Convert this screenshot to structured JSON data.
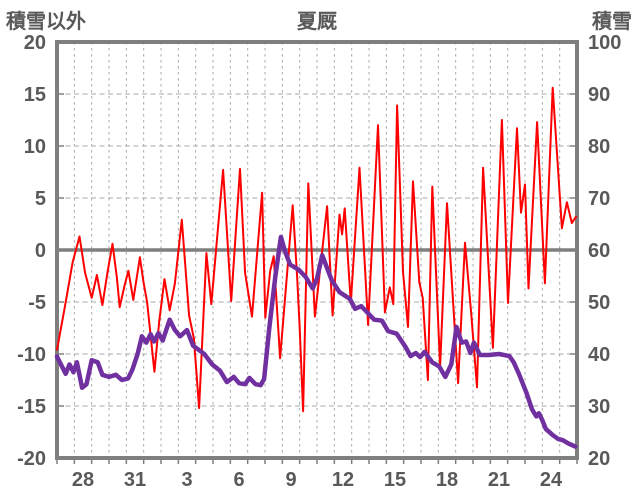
{
  "window": {
    "background": "#ffffff"
  },
  "chart_data": {
    "type": "line",
    "title": "夏厩",
    "left_axis": {
      "title": "積雪以外",
      "min": -20,
      "max": 20,
      "tick_step": 5,
      "ticks": [
        "20",
        "15",
        "10",
        "5",
        "0",
        "-5",
        "-10",
        "-15",
        "-20"
      ]
    },
    "right_axis": {
      "title": "積雪",
      "min": 20,
      "max": 100,
      "tick_step": 10,
      "ticks": [
        "100",
        "90",
        "80",
        "70",
        "60",
        "50",
        "40",
        "30",
        "20"
      ]
    },
    "x_axis": {
      "tick_labels": [
        "28",
        "31",
        "3",
        "6",
        "9",
        "12",
        "15",
        "18",
        "21",
        "24"
      ],
      "days_shown": 30,
      "label_day_centers": [
        1.5,
        4.5,
        7.5,
        10.5,
        13.5,
        16.5,
        19.5,
        22.5,
        25.5,
        28.5
      ],
      "gridline_every_days": 1
    },
    "style": {
      "grid_color": "#A8A8A8",
      "border_color": "#7F7F7F",
      "zero_line_color": "#7F7F7F",
      "text_color": "#595959",
      "legend": "none",
      "grid": "dashed"
    },
    "series": [
      {
        "name": "red",
        "axis": "left",
        "color": "#FF0000",
        "width": 2,
        "points": [
          [
            0.0,
            -9.6
          ],
          [
            0.45,
            -5.5
          ],
          [
            0.9,
            -1.2
          ],
          [
            1.3,
            1.3
          ],
          [
            1.62,
            -2.2
          ],
          [
            2.0,
            -4.6
          ],
          [
            2.3,
            -2.4
          ],
          [
            2.62,
            -5.3
          ],
          [
            2.92,
            -2.1
          ],
          [
            3.2,
            0.6
          ],
          [
            3.45,
            -2.6
          ],
          [
            3.62,
            -5.5
          ],
          [
            3.9,
            -3.4
          ],
          [
            4.12,
            -2.0
          ],
          [
            4.4,
            -4.8
          ],
          [
            4.78,
            -0.7
          ],
          [
            5.0,
            -3.2
          ],
          [
            5.2,
            -5.0
          ],
          [
            5.62,
            -11.7
          ],
          [
            5.9,
            -6.8
          ],
          [
            6.2,
            -2.8
          ],
          [
            6.5,
            -5.8
          ],
          [
            6.8,
            -3.2
          ],
          [
            7.2,
            2.9
          ],
          [
            7.62,
            -6.3
          ],
          [
            7.9,
            -8.5
          ],
          [
            8.2,
            -15.2
          ],
          [
            8.62,
            -0.3
          ],
          [
            8.9,
            -5.2
          ],
          [
            9.58,
            7.7
          ],
          [
            10.05,
            -4.9
          ],
          [
            10.56,
            7.8
          ],
          [
            10.85,
            -2.2
          ],
          [
            11.25,
            -6.4
          ],
          [
            11.83,
            5.5
          ],
          [
            12.02,
            -6.5
          ],
          [
            12.3,
            -2.0
          ],
          [
            12.5,
            -0.6
          ],
          [
            12.87,
            -10.4
          ],
          [
            13.6,
            4.3
          ],
          [
            13.85,
            -2.5
          ],
          [
            14.0,
            -7.5
          ],
          [
            14.2,
            -15.5
          ],
          [
            14.5,
            6.4
          ],
          [
            14.88,
            -6.4
          ],
          [
            15.58,
            4.2
          ],
          [
            15.9,
            -6.3
          ],
          [
            16.3,
            3.4
          ],
          [
            16.45,
            1.5
          ],
          [
            16.6,
            4.0
          ],
          [
            16.95,
            -5.1
          ],
          [
            17.45,
            7.9
          ],
          [
            17.95,
            -7.2
          ],
          [
            18.52,
            12.0
          ],
          [
            18.92,
            -6.0
          ],
          [
            19.2,
            -3.6
          ],
          [
            19.4,
            -5.2
          ],
          [
            19.62,
            13.9
          ],
          [
            19.96,
            -2.1
          ],
          [
            20.25,
            -7.4
          ],
          [
            20.54,
            6.6
          ],
          [
            20.9,
            -3.1
          ],
          [
            21.1,
            -4.6
          ],
          [
            21.4,
            -12.5
          ],
          [
            21.65,
            6.1
          ],
          [
            22.1,
            -11.2
          ],
          [
            22.5,
            4.5
          ],
          [
            23.14,
            -12.8
          ],
          [
            23.54,
            0.7
          ],
          [
            23.9,
            -6.2
          ],
          [
            24.23,
            -13.2
          ],
          [
            24.58,
            7.9
          ],
          [
            25.15,
            -9.4
          ],
          [
            25.67,
            12.5
          ],
          [
            26.02,
            -5.1
          ],
          [
            26.54,
            11.7
          ],
          [
            26.77,
            3.6
          ],
          [
            27.0,
            6.3
          ],
          [
            27.2,
            -3.7
          ],
          [
            27.7,
            12.3
          ],
          [
            28.15,
            -3.2
          ],
          [
            28.6,
            15.6
          ],
          [
            29.13,
            2.1
          ],
          [
            29.42,
            4.6
          ],
          [
            29.7,
            2.6
          ],
          [
            29.95,
            3.2
          ]
        ]
      },
      {
        "name": "purple",
        "axis": "right",
        "color": "#7030A0",
        "width": 4.5,
        "points": [
          [
            0.0,
            39.5
          ],
          [
            0.5,
            36.2
          ],
          [
            0.72,
            38.0
          ],
          [
            0.95,
            36.5
          ],
          [
            1.15,
            38.4
          ],
          [
            1.45,
            33.5
          ],
          [
            1.7,
            34.2
          ],
          [
            2.0,
            38.8
          ],
          [
            2.35,
            38.4
          ],
          [
            2.62,
            36.0
          ],
          [
            3.0,
            35.6
          ],
          [
            3.4,
            36.0
          ],
          [
            3.75,
            35.0
          ],
          [
            4.1,
            35.3
          ],
          [
            4.35,
            37.0
          ],
          [
            4.65,
            40.0
          ],
          [
            4.9,
            43.4
          ],
          [
            5.15,
            42.2
          ],
          [
            5.4,
            43.8
          ],
          [
            5.6,
            42.4
          ],
          [
            5.85,
            44.0
          ],
          [
            6.1,
            42.6
          ],
          [
            6.5,
            46.6
          ],
          [
            6.8,
            44.6
          ],
          [
            7.1,
            43.4
          ],
          [
            7.5,
            44.6
          ],
          [
            7.85,
            41.6
          ],
          [
            8.5,
            40.0
          ],
          [
            8.95,
            38.0
          ],
          [
            9.4,
            36.8
          ],
          [
            9.8,
            34.6
          ],
          [
            10.2,
            35.6
          ],
          [
            10.5,
            34.4
          ],
          [
            10.85,
            34.2
          ],
          [
            11.1,
            35.4
          ],
          [
            11.45,
            34.2
          ],
          [
            11.75,
            34.0
          ],
          [
            11.95,
            35.2
          ],
          [
            12.25,
            45.0
          ],
          [
            12.6,
            55.0
          ],
          [
            12.92,
            62.5
          ],
          [
            13.15,
            59.8
          ],
          [
            13.45,
            57.2
          ],
          [
            13.95,
            56.2
          ],
          [
            14.35,
            54.8
          ],
          [
            14.75,
            52.6
          ],
          [
            15.0,
            54.5
          ],
          [
            15.3,
            59.0
          ],
          [
            15.85,
            54.2
          ],
          [
            16.3,
            51.9
          ],
          [
            16.9,
            50.6
          ],
          [
            17.2,
            48.7
          ],
          [
            17.55,
            49.2
          ],
          [
            17.9,
            48.0
          ],
          [
            18.3,
            46.6
          ],
          [
            18.75,
            46.4
          ],
          [
            19.1,
            44.4
          ],
          [
            19.6,
            43.9
          ],
          [
            20.1,
            41.4
          ],
          [
            20.4,
            39.6
          ],
          [
            20.7,
            40.2
          ],
          [
            20.95,
            39.4
          ],
          [
            21.2,
            40.4
          ],
          [
            21.65,
            38.4
          ],
          [
            22.05,
            37.6
          ],
          [
            22.4,
            35.6
          ],
          [
            22.75,
            38.0
          ],
          [
            23.05,
            45.2
          ],
          [
            23.35,
            42.2
          ],
          [
            23.6,
            42.4
          ],
          [
            23.85,
            40.2
          ],
          [
            24.05,
            42.2
          ],
          [
            24.4,
            39.8
          ],
          [
            24.9,
            39.8
          ],
          [
            25.5,
            40.0
          ],
          [
            26.1,
            39.6
          ],
          [
            26.35,
            38.4
          ],
          [
            26.65,
            36.2
          ],
          [
            27.1,
            32.4
          ],
          [
            27.4,
            29.4
          ],
          [
            27.65,
            28.0
          ],
          [
            27.8,
            28.6
          ],
          [
            27.98,
            27.4
          ],
          [
            28.2,
            25.6
          ],
          [
            28.6,
            24.4
          ],
          [
            28.9,
            23.7
          ],
          [
            29.2,
            23.4
          ],
          [
            29.5,
            22.8
          ],
          [
            29.9,
            22.2
          ]
        ]
      }
    ]
  }
}
